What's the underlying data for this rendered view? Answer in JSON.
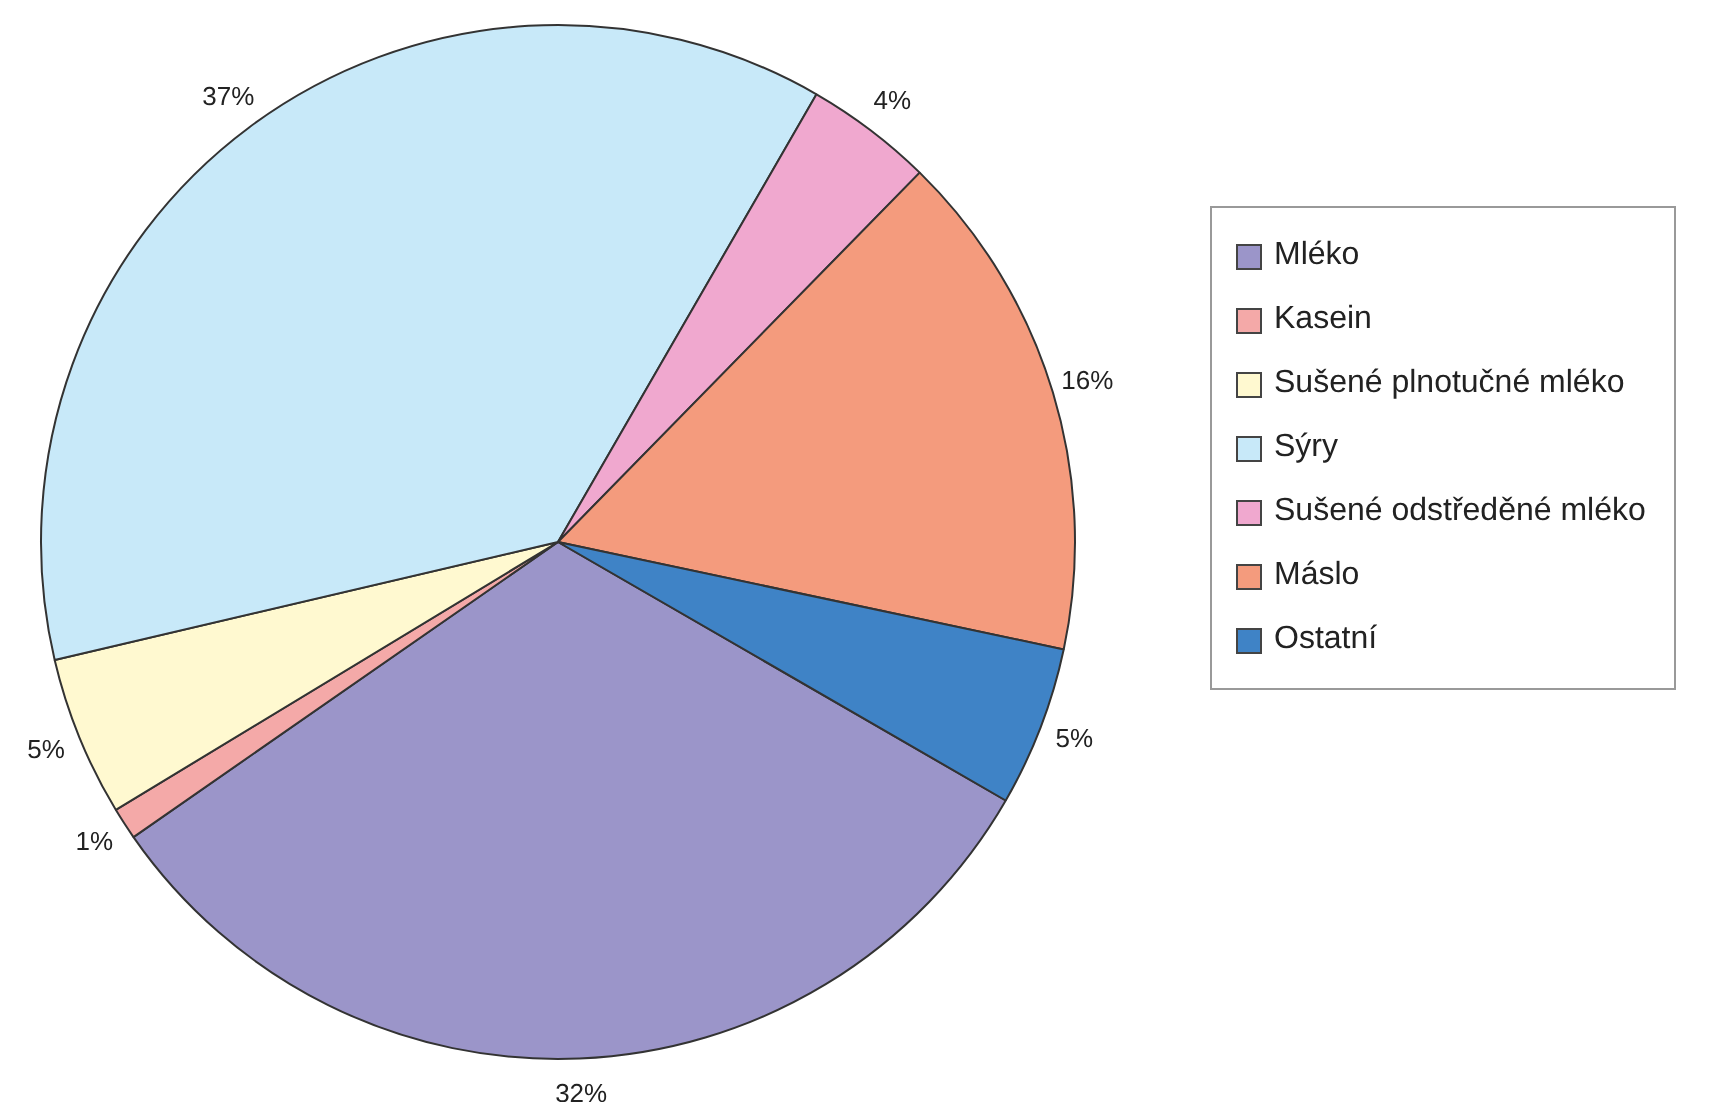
{
  "chart_data": {
    "type": "pie",
    "categories": [
      "Mléko",
      "Kasein",
      "Sušené plnotučné mléko",
      "Sýry",
      "Sušené odstředěné mléko",
      "Máslo",
      "Ostatní"
    ],
    "values": [
      32,
      1,
      5,
      37,
      4,
      16,
      5
    ],
    "value_labels": [
      "32%",
      "1%",
      "5%",
      "37%",
      "4%",
      "16%",
      "5%"
    ],
    "colors": [
      "#9b95c9",
      "#f4a9a8",
      "#fff9d0",
      "#c8e9f9",
      "#f0a8cf",
      "#f49b7d",
      "#3f83c6"
    ],
    "legend": "right"
  }
}
